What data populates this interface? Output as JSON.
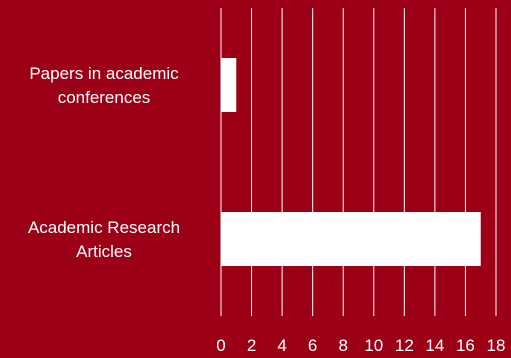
{
  "colors": {
    "background": "#9c0016",
    "bar": "#ffffff",
    "gridline": "#ffffff",
    "text": "#ffffff"
  },
  "chart_data": {
    "type": "bar",
    "orientation": "horizontal",
    "categories": [
      [
        "Papers in academic",
        "conferences"
      ],
      [
        "Academic Research",
        "Articles"
      ]
    ],
    "values": [
      1,
      17
    ],
    "xlim": [
      0,
      18
    ],
    "x_ticks": [
      0,
      2,
      4,
      6,
      8,
      10,
      12,
      14,
      16,
      18
    ],
    "title": "",
    "xlabel": "",
    "ylabel": "",
    "grid": true,
    "legend": "none"
  }
}
